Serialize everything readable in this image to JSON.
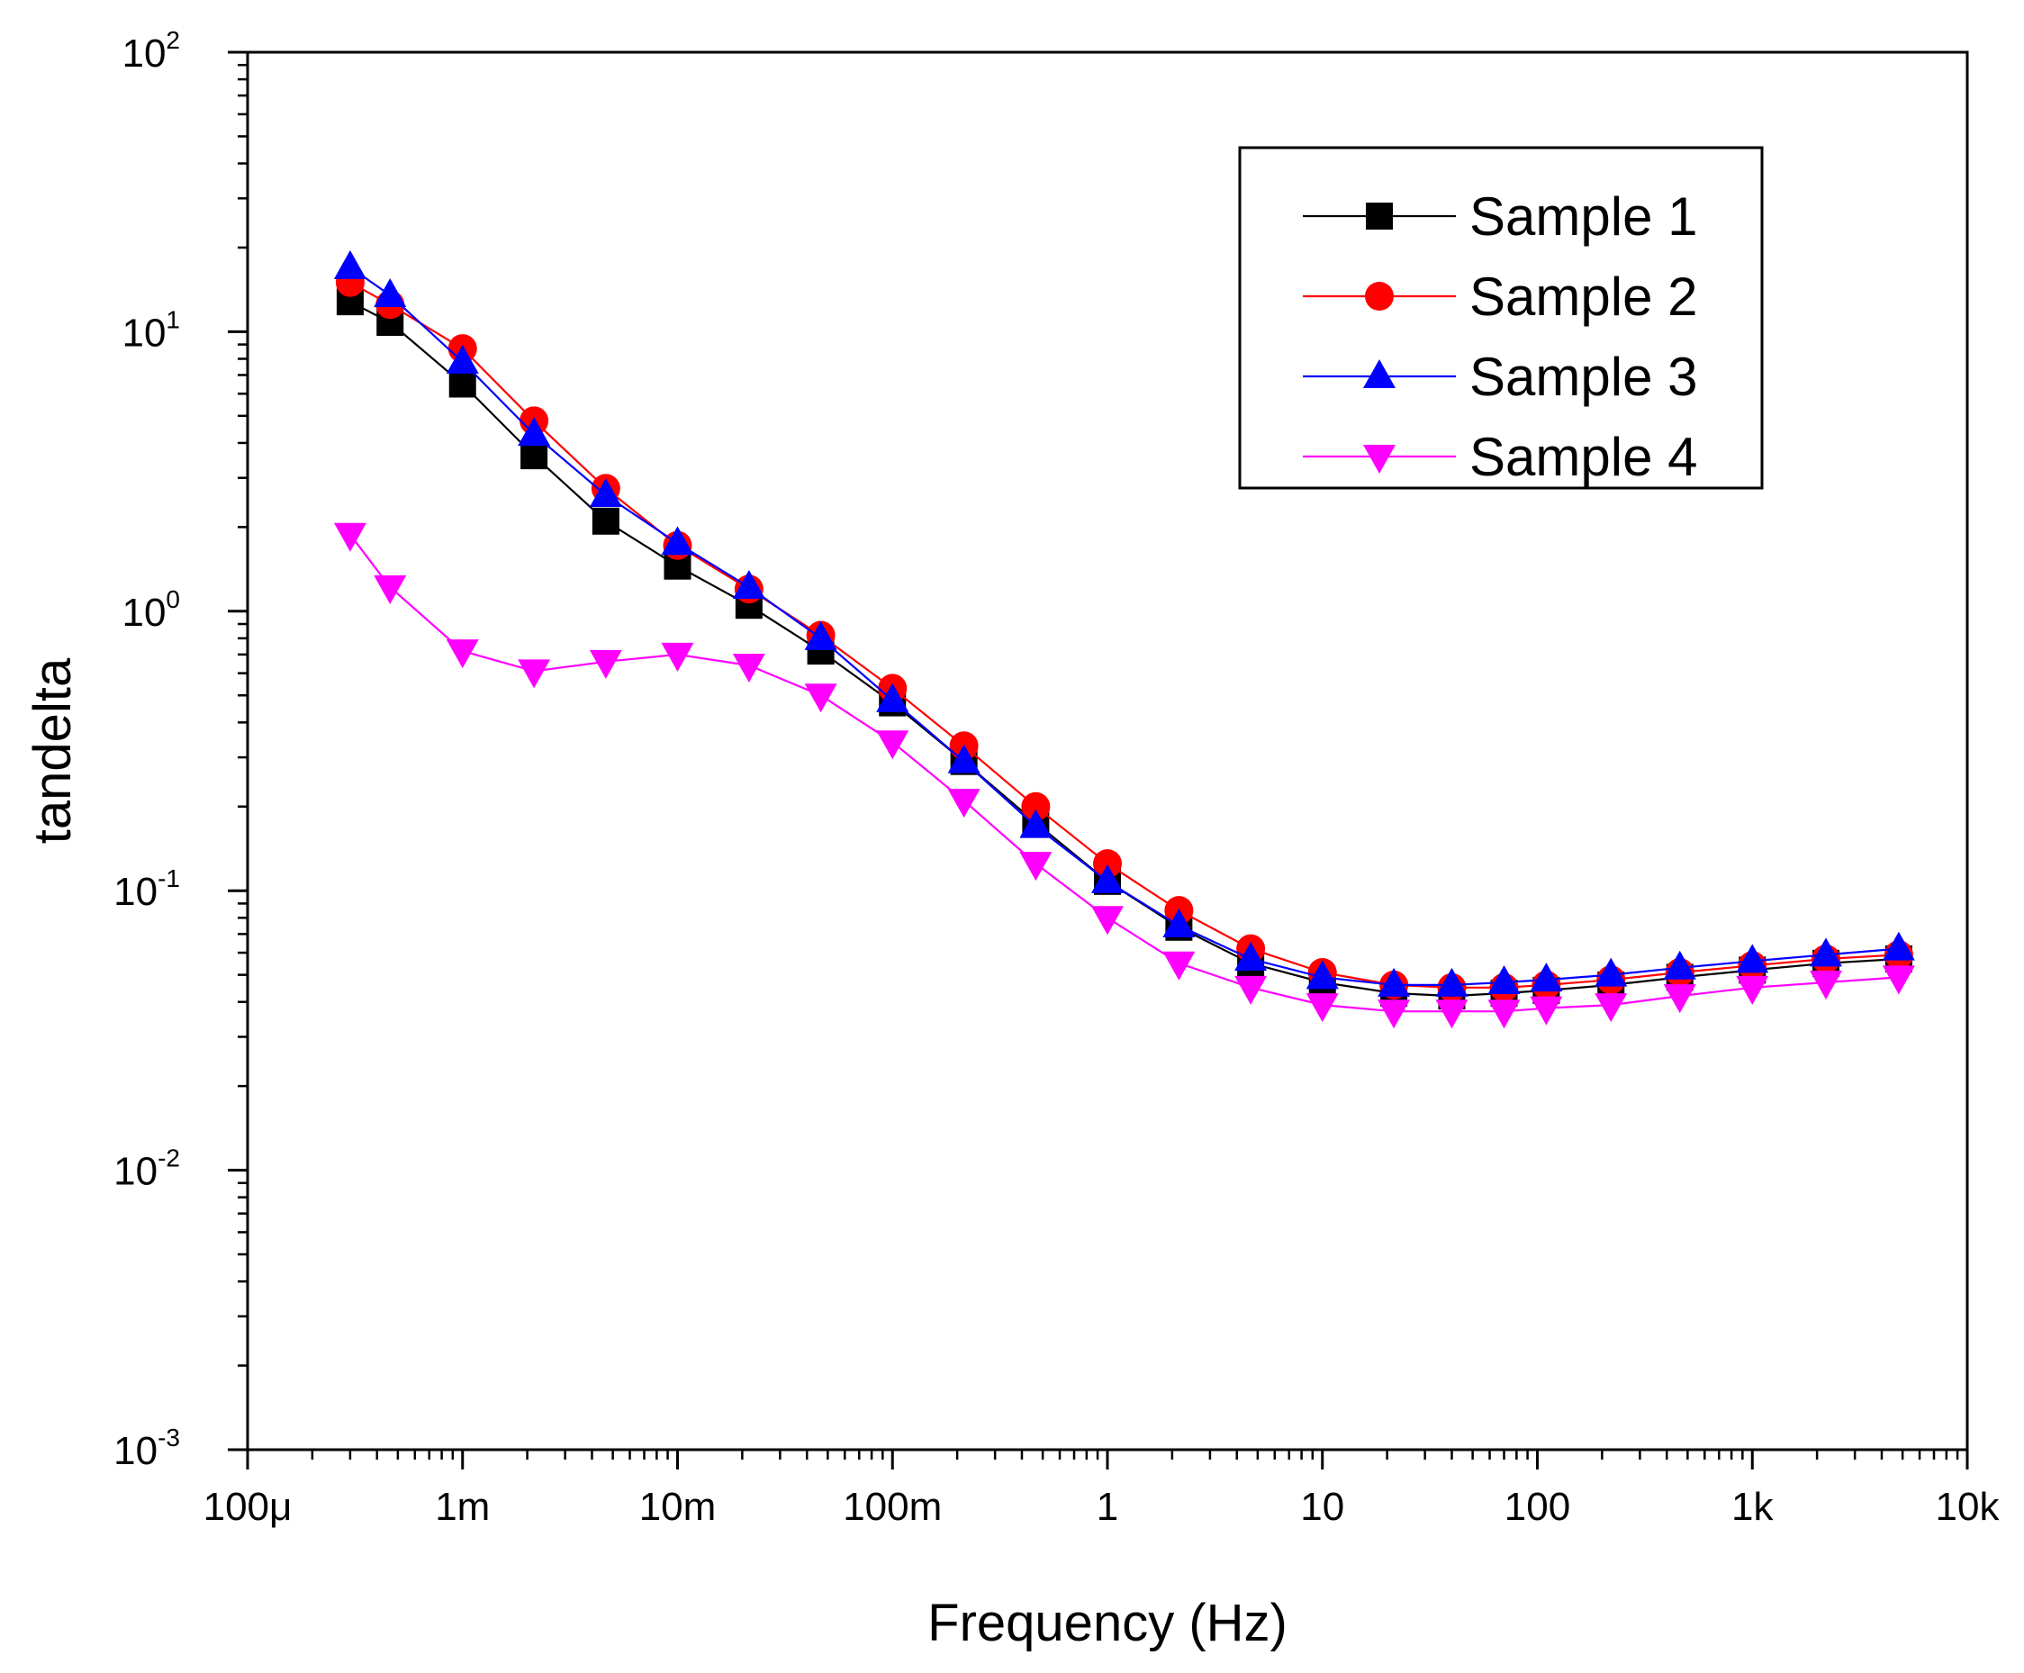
{
  "chart_data": {
    "type": "line",
    "xlabel": "Frequency (Hz)",
    "ylabel": "tandelta",
    "xscale": "log",
    "yscale": "log",
    "xlim": [
      0.0001,
      10000
    ],
    "ylim": [
      0.001,
      100
    ],
    "x_ticks": [
      {
        "value": 0.0001,
        "label": "100μ"
      },
      {
        "value": 0.001,
        "label": "1m"
      },
      {
        "value": 0.01,
        "label": "10m"
      },
      {
        "value": 0.1,
        "label": "100m"
      },
      {
        "value": 1,
        "label": "1"
      },
      {
        "value": 10,
        "label": "10"
      },
      {
        "value": 100,
        "label": "100"
      },
      {
        "value": 1000,
        "label": "1k"
      },
      {
        "value": 10000,
        "label": "10k"
      }
    ],
    "y_ticks": [
      {
        "value": 0.001,
        "base": "10",
        "exp": "-3"
      },
      {
        "value": 0.01,
        "base": "10",
        "exp": "-2"
      },
      {
        "value": 0.1,
        "base": "10",
        "exp": "-1"
      },
      {
        "value": 1,
        "base": "10",
        "exp": "0"
      },
      {
        "value": 10,
        "base": "10",
        "exp": "1"
      },
      {
        "value": 100,
        "base": "10",
        "exp": "2"
      }
    ],
    "legend_position": "top-right",
    "grid": false,
    "x": [
      0.0003,
      0.00046,
      0.001,
      0.00215,
      0.00464,
      0.01,
      0.0215,
      0.0464,
      0.1,
      0.215,
      0.464,
      1,
      2.15,
      4.64,
      10,
      21.5,
      40,
      70,
      110,
      220,
      460,
      1000,
      2200,
      4800
    ],
    "series": [
      {
        "name": "Sample 1",
        "color": "#000000",
        "marker": "square",
        "values": [
          12.8,
          10.8,
          6.5,
          3.6,
          2.1,
          1.45,
          1.05,
          0.72,
          0.47,
          0.29,
          0.175,
          0.108,
          0.074,
          0.055,
          0.047,
          0.043,
          0.042,
          0.043,
          0.044,
          0.046,
          0.049,
          0.052,
          0.055,
          0.057
        ]
      },
      {
        "name": "Sample 2",
        "color": "#ff0000",
        "marker": "circle",
        "values": [
          15.0,
          12.5,
          8.7,
          4.8,
          2.75,
          1.72,
          1.2,
          0.82,
          0.53,
          0.33,
          0.2,
          0.125,
          0.085,
          0.062,
          0.051,
          0.046,
          0.045,
          0.045,
          0.046,
          0.048,
          0.051,
          0.054,
          0.057,
          0.059
        ]
      },
      {
        "name": "Sample 3",
        "color": "#0000ff",
        "marker": "triangle-up",
        "values": [
          17.0,
          13.5,
          7.8,
          4.3,
          2.6,
          1.75,
          1.22,
          0.8,
          0.48,
          0.29,
          0.17,
          0.108,
          0.075,
          0.057,
          0.049,
          0.046,
          0.046,
          0.047,
          0.048,
          0.05,
          0.053,
          0.056,
          0.059,
          0.062
        ]
      },
      {
        "name": "Sample 4",
        "color": "#ff00ff",
        "marker": "triangle-down",
        "values": [
          1.88,
          1.22,
          0.72,
          0.61,
          0.66,
          0.7,
          0.64,
          0.5,
          0.34,
          0.21,
          0.125,
          0.08,
          0.055,
          0.045,
          0.039,
          0.037,
          0.037,
          0.037,
          0.038,
          0.039,
          0.042,
          0.045,
          0.047,
          0.049
        ]
      }
    ]
  }
}
